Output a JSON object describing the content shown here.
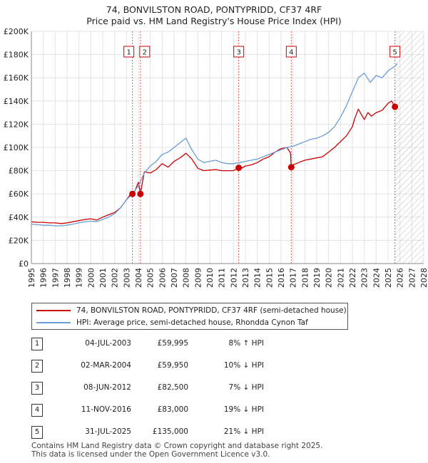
{
  "title_line1": "74, BONVILSTON ROAD, PONTYPRIDD, CF37 4RF",
  "title_line2": "Price paid vs. HM Land Registry's House Price Index (HPI)",
  "chart_data": {
    "type": "line",
    "title": "74, BONVILSTON ROAD, PONTYPRIDD, CF37 4RF — Price paid vs. HM Land Registry's House Price Index (HPI)",
    "xlabel": "",
    "ylabel": "",
    "xlim": [
      1995,
      2028
    ],
    "ylim": [
      0,
      200000
    ],
    "x_ticks": [
      "1995",
      "1996",
      "1997",
      "1998",
      "1999",
      "2000",
      "2001",
      "2002",
      "2003",
      "2004",
      "2005",
      "2006",
      "2007",
      "2008",
      "2009",
      "2010",
      "2011",
      "2012",
      "2013",
      "2014",
      "2015",
      "2016",
      "2017",
      "2018",
      "2019",
      "2020",
      "2021",
      "2022",
      "2023",
      "2024",
      "2025",
      "2026",
      "2027",
      "2028"
    ],
    "y_ticks": [
      {
        "value": 0,
        "label": "£0"
      },
      {
        "value": 20000,
        "label": "£20K"
      },
      {
        "value": 40000,
        "label": "£40K"
      },
      {
        "value": 60000,
        "label": "£60K"
      },
      {
        "value": 80000,
        "label": "£80K"
      },
      {
        "value": 100000,
        "label": "£100K"
      },
      {
        "value": 120000,
        "label": "£120K"
      },
      {
        "value": 140000,
        "label": "£140K"
      },
      {
        "value": 160000,
        "label": "£160K"
      },
      {
        "value": 180000,
        "label": "£180K"
      },
      {
        "value": 200000,
        "label": "£200K"
      }
    ],
    "grid": true,
    "forecast_hatch_from": 2025.6,
    "series": [
      {
        "name": "74, BONVILSTON ROAD, PONTYPRIDD, CF37 4RF (semi-detached house)",
        "color": "#cc0000",
        "x": [
          1995.0,
          1995.5,
          1996.0,
          1996.5,
          1997.0,
          1997.5,
          1998.0,
          1998.5,
          1999.0,
          1999.5,
          2000.0,
          2000.5,
          2001.0,
          2001.5,
          2002.0,
          2002.5,
          2003.0,
          2003.5,
          2003.6,
          2003.8,
          2004.0,
          2004.17,
          2004.5,
          2005.0,
          2005.5,
          2006.0,
          2006.5,
          2007.0,
          2007.5,
          2008.0,
          2008.5,
          2009.0,
          2009.5,
          2010.0,
          2010.5,
          2011.0,
          2011.5,
          2012.0,
          2012.44,
          2012.5,
          2013.0,
          2013.5,
          2014.0,
          2014.5,
          2015.0,
          2015.5,
          2016.0,
          2016.5,
          2016.8,
          2016.86,
          2017.0,
          2017.5,
          2018.0,
          2018.5,
          2019.0,
          2019.5,
          2020.0,
          2020.5,
          2021.0,
          2021.5,
          2022.0,
          2022.2,
          2022.5,
          2023.0,
          2023.3,
          2023.6,
          2024.0,
          2024.5,
          2025.0,
          2025.3,
          2025.58
        ],
        "values": [
          36000,
          35500,
          35500,
          35000,
          35000,
          34500,
          35000,
          36000,
          37000,
          38000,
          38500,
          37500,
          40000,
          42000,
          44000,
          48000,
          55000,
          62000,
          59995,
          65000,
          70000,
          59950,
          79000,
          78000,
          81000,
          86000,
          83000,
          88000,
          91000,
          95000,
          90000,
          82000,
          80000,
          80500,
          81000,
          80000,
          80000,
          80000,
          82500,
          81000,
          84000,
          85000,
          87000,
          90000,
          92000,
          96000,
          99000,
          100000,
          95000,
          83000,
          85000,
          87000,
          89000,
          90000,
          91000,
          92000,
          96000,
          100000,
          105000,
          110000,
          118000,
          125000,
          133000,
          124000,
          130000,
          127000,
          130000,
          132000,
          138000,
          140000,
          135000
        ]
      },
      {
        "name": "HPI: Average price, semi-detached house, Rhondda Cynon Taf",
        "color": "#6a9ed8",
        "x": [
          1995.0,
          1995.5,
          1996.0,
          1996.5,
          1997.0,
          1997.5,
          1998.0,
          1998.5,
          1999.0,
          1999.5,
          2000.0,
          2000.5,
          2001.0,
          2001.5,
          2002.0,
          2002.5,
          2003.0,
          2003.5,
          2004.0,
          2004.5,
          2005.0,
          2005.5,
          2006.0,
          2006.5,
          2007.0,
          2007.5,
          2008.0,
          2008.5,
          2009.0,
          2009.5,
          2010.0,
          2010.5,
          2011.0,
          2011.5,
          2012.0,
          2012.5,
          2013.0,
          2013.5,
          2014.0,
          2014.5,
          2015.0,
          2015.5,
          2016.0,
          2016.5,
          2017.0,
          2017.5,
          2018.0,
          2018.5,
          2019.0,
          2019.5,
          2020.0,
          2020.5,
          2021.0,
          2021.5,
          2022.0,
          2022.5,
          2023.0,
          2023.5,
          2024.0,
          2024.5,
          2025.0,
          2025.58,
          2025.8
        ],
        "values": [
          34000,
          33500,
          33000,
          33000,
          32500,
          32500,
          33000,
          34000,
          35000,
          36000,
          36500,
          36000,
          38000,
          40000,
          43000,
          48000,
          55000,
          60000,
          67000,
          78000,
          84000,
          88000,
          94000,
          96000,
          100000,
          104000,
          108000,
          98000,
          90000,
          87000,
          88000,
          89000,
          87000,
          86000,
          86000,
          87000,
          88000,
          89000,
          90000,
          92000,
          94000,
          96000,
          98000,
          100000,
          101000,
          103000,
          105000,
          107000,
          108000,
          110000,
          113000,
          118000,
          126000,
          136000,
          148000,
          160000,
          164000,
          156000,
          162000,
          160000,
          166000,
          170000,
          172000
        ]
      }
    ],
    "transactions": [
      {
        "label": "1",
        "x": 2003.5,
        "value": 59995
      },
      {
        "label": "2",
        "x": 2004.17,
        "value": 59950
      },
      {
        "label": "3",
        "x": 2012.44,
        "value": 82500
      },
      {
        "label": "4",
        "x": 2016.86,
        "value": 83000
      },
      {
        "label": "5",
        "x": 2025.58,
        "value": 135000
      }
    ]
  },
  "legend": [
    {
      "label": "74, BONVILSTON ROAD, PONTYPRIDD, CF37 4RF (semi-detached house)",
      "color": "#cc0000"
    },
    {
      "label": "HPI: Average price, semi-detached house, Rhondda Cynon Taf",
      "color": "#6a9ed8"
    }
  ],
  "table_rows": [
    {
      "num": "1",
      "date": "04-JUL-2003",
      "price": "£59,995",
      "hpi": "8% ↑ HPI"
    },
    {
      "num": "2",
      "date": "02-MAR-2004",
      "price": "£59,950",
      "hpi": "10% ↓ HPI"
    },
    {
      "num": "3",
      "date": "08-JUN-2012",
      "price": "£82,500",
      "hpi": "7% ↓ HPI"
    },
    {
      "num": "4",
      "date": "11-NOV-2016",
      "price": "£83,000",
      "hpi": "19% ↓ HPI"
    },
    {
      "num": "5",
      "date": "31-JUL-2025",
      "price": "£135,000",
      "hpi": "21% ↓ HPI"
    }
  ],
  "footer_line1": "Contains HM Land Registry data © Crown copyright and database right 2025.",
  "footer_line2": "This data is licensed under the Open Government Licence v3.0."
}
